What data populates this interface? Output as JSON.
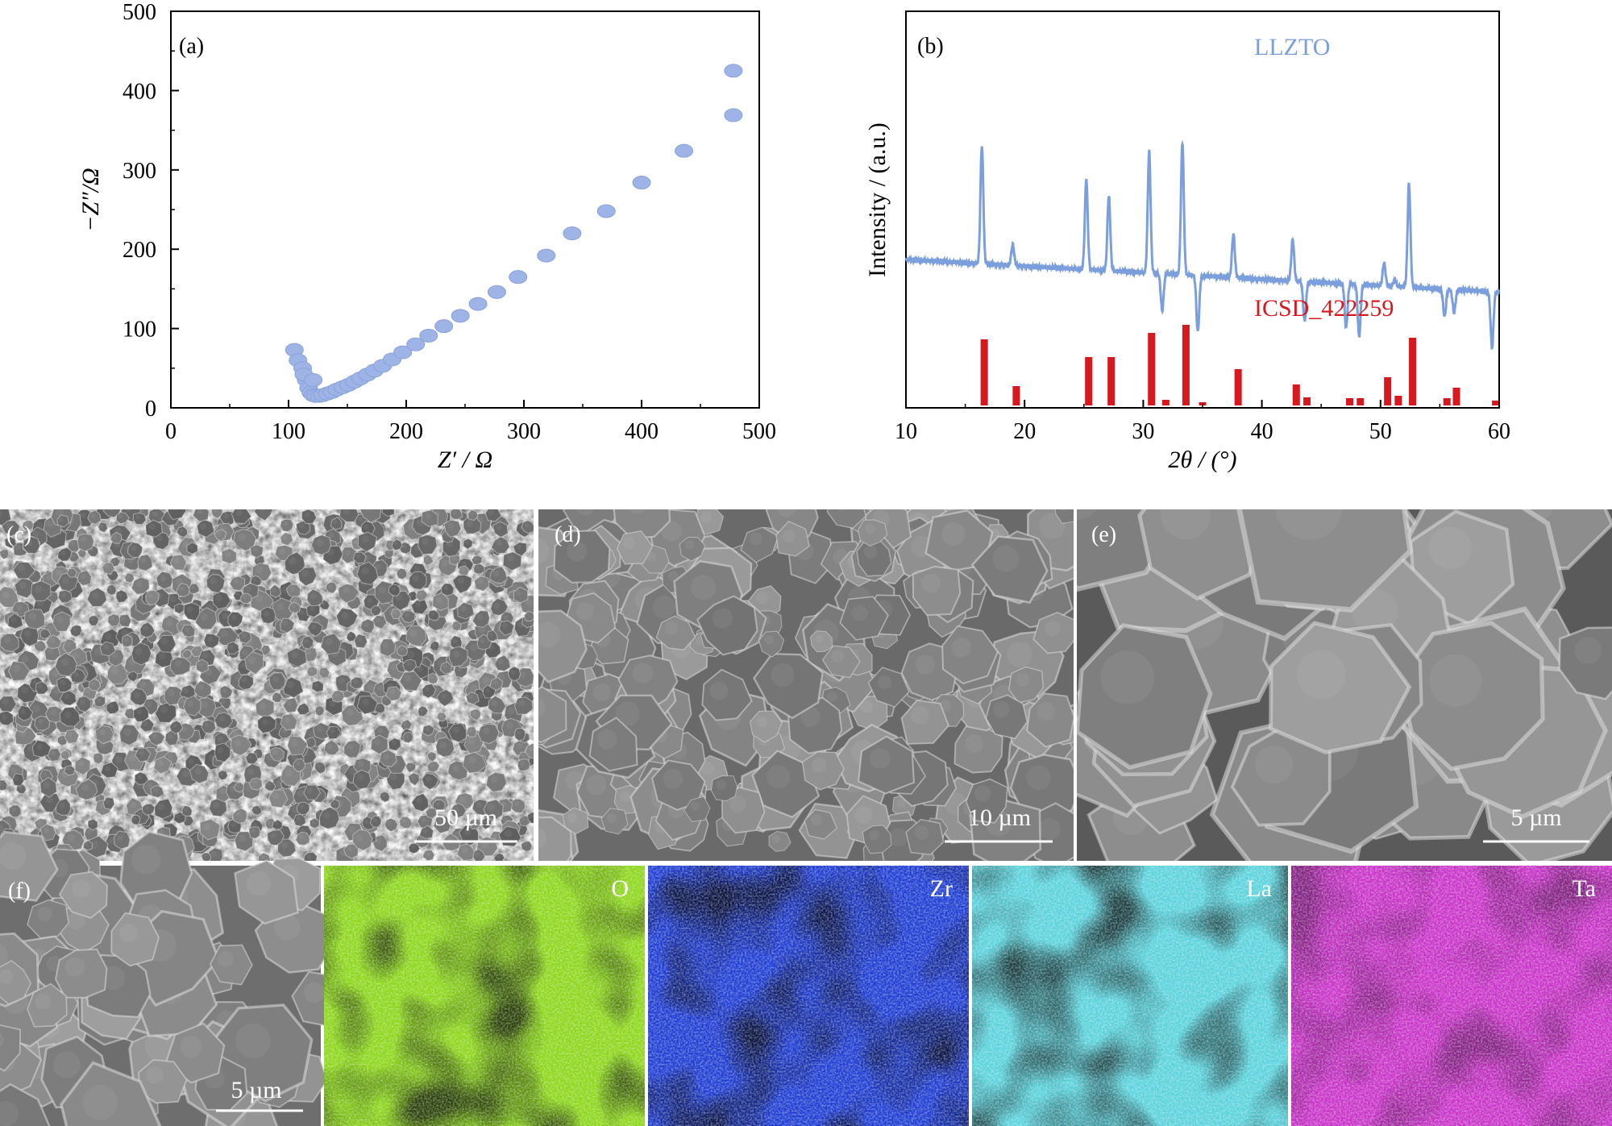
{
  "panels": {
    "a": {
      "label": "(a)"
    },
    "b": {
      "label": "(b)"
    },
    "c": {
      "label": "(c)",
      "scale_bar": "50 µm"
    },
    "d": {
      "label": "(d)",
      "scale_bar": "10 µm"
    },
    "e": {
      "label": "(e)",
      "scale_bar": "5 µm"
    },
    "f": {
      "label": "(f)",
      "scale_bar": "5 µm"
    }
  },
  "eds_maps": [
    {
      "element": "O",
      "color": "#8cd61a"
    },
    {
      "element": "Zr",
      "color": "#1e3cd2"
    },
    {
      "element": "La",
      "color": "#5ad2dc"
    },
    {
      "element": "Ta",
      "color": "#c832c8"
    }
  ],
  "chart_data": [
    {
      "panel": "a",
      "type": "scatter",
      "xlabel": "Z′ / Ω",
      "ylabel": "−Z″/Ω",
      "xlim": [
        0,
        500
      ],
      "ylim": [
        0,
        500
      ],
      "xticks": [
        0,
        100,
        200,
        300,
        400,
        500
      ],
      "yticks": [
        0,
        100,
        200,
        300,
        400,
        500
      ],
      "marker_color": "#9eb3e6",
      "series": [
        {
          "x": [
            105,
            108,
            112,
            115,
            117,
            119,
            121,
            123,
            126,
            129,
            133,
            137,
            141,
            146,
            151,
            156,
            161,
            167,
            173,
            180,
            188,
            197,
            208,
            219,
            232,
            246,
            261,
            277,
            295,
            319,
            341,
            370,
            400,
            436,
            478
          ],
          "y": [
            73,
            60,
            50,
            35,
            25,
            19,
            16,
            15,
            15,
            16,
            18,
            20,
            23,
            26,
            29,
            33,
            37,
            42,
            47,
            53,
            61,
            70,
            80,
            91,
            103,
            116,
            131,
            146,
            165,
            192,
            220,
            248,
            284,
            324,
            369
          ],
          "note_extra": [
            [
              113,
              42
            ],
            [
              121,
              35
            ],
            [
              478,
              425
            ]
          ]
        }
      ]
    },
    {
      "panel": "b",
      "type": "line",
      "xlabel": "2θ / (°)",
      "ylabel": "Intensity / (a.u.)",
      "xlim": [
        10,
        60
      ],
      "xticks": [
        10,
        20,
        30,
        40,
        50,
        60
      ],
      "series": [
        {
          "name": "LLZTO",
          "color": "#7b9fdc",
          "baseline": 0.36,
          "peaks": [
            [
              16.4,
              0.93
            ],
            [
              19.0,
              0.46
            ],
            [
              25.2,
              0.8
            ],
            [
              27.1,
              0.72
            ],
            [
              30.5,
              0.95
            ],
            [
              31.6,
              0.18
            ],
            [
              33.3,
              1.0
            ],
            [
              34.6,
              0.09
            ],
            [
              37.6,
              0.57
            ],
            [
              42.6,
              0.56
            ],
            [
              43.6,
              0.17
            ],
            [
              47.1,
              0.15
            ],
            [
              48.2,
              0.11
            ],
            [
              50.3,
              0.47
            ],
            [
              51.2,
              0.39
            ],
            [
              52.4,
              0.86
            ],
            [
              55.4,
              0.23
            ],
            [
              56.2,
              0.25
            ],
            [
              59.4,
              0.09
            ]
          ]
        },
        {
          "name": "ICSD_422259",
          "color": "#d7191f",
          "type": "stick",
          "sticks": [
            [
              16.6,
              0.82
            ],
            [
              19.3,
              0.24
            ],
            [
              25.4,
              0.6
            ],
            [
              27.3,
              0.6
            ],
            [
              30.7,
              0.9
            ],
            [
              31.9,
              0.07
            ],
            [
              33.6,
              1.0
            ],
            [
              35.0,
              0.04
            ],
            [
              38.0,
              0.45
            ],
            [
              42.9,
              0.26
            ],
            [
              43.8,
              0.1
            ],
            [
              47.4,
              0.09
            ],
            [
              48.3,
              0.09
            ],
            [
              50.6,
              0.35
            ],
            [
              51.5,
              0.12
            ],
            [
              52.7,
              0.84
            ],
            [
              55.6,
              0.09
            ],
            [
              56.4,
              0.22
            ],
            [
              59.7,
              0.06
            ]
          ]
        }
      ]
    }
  ]
}
